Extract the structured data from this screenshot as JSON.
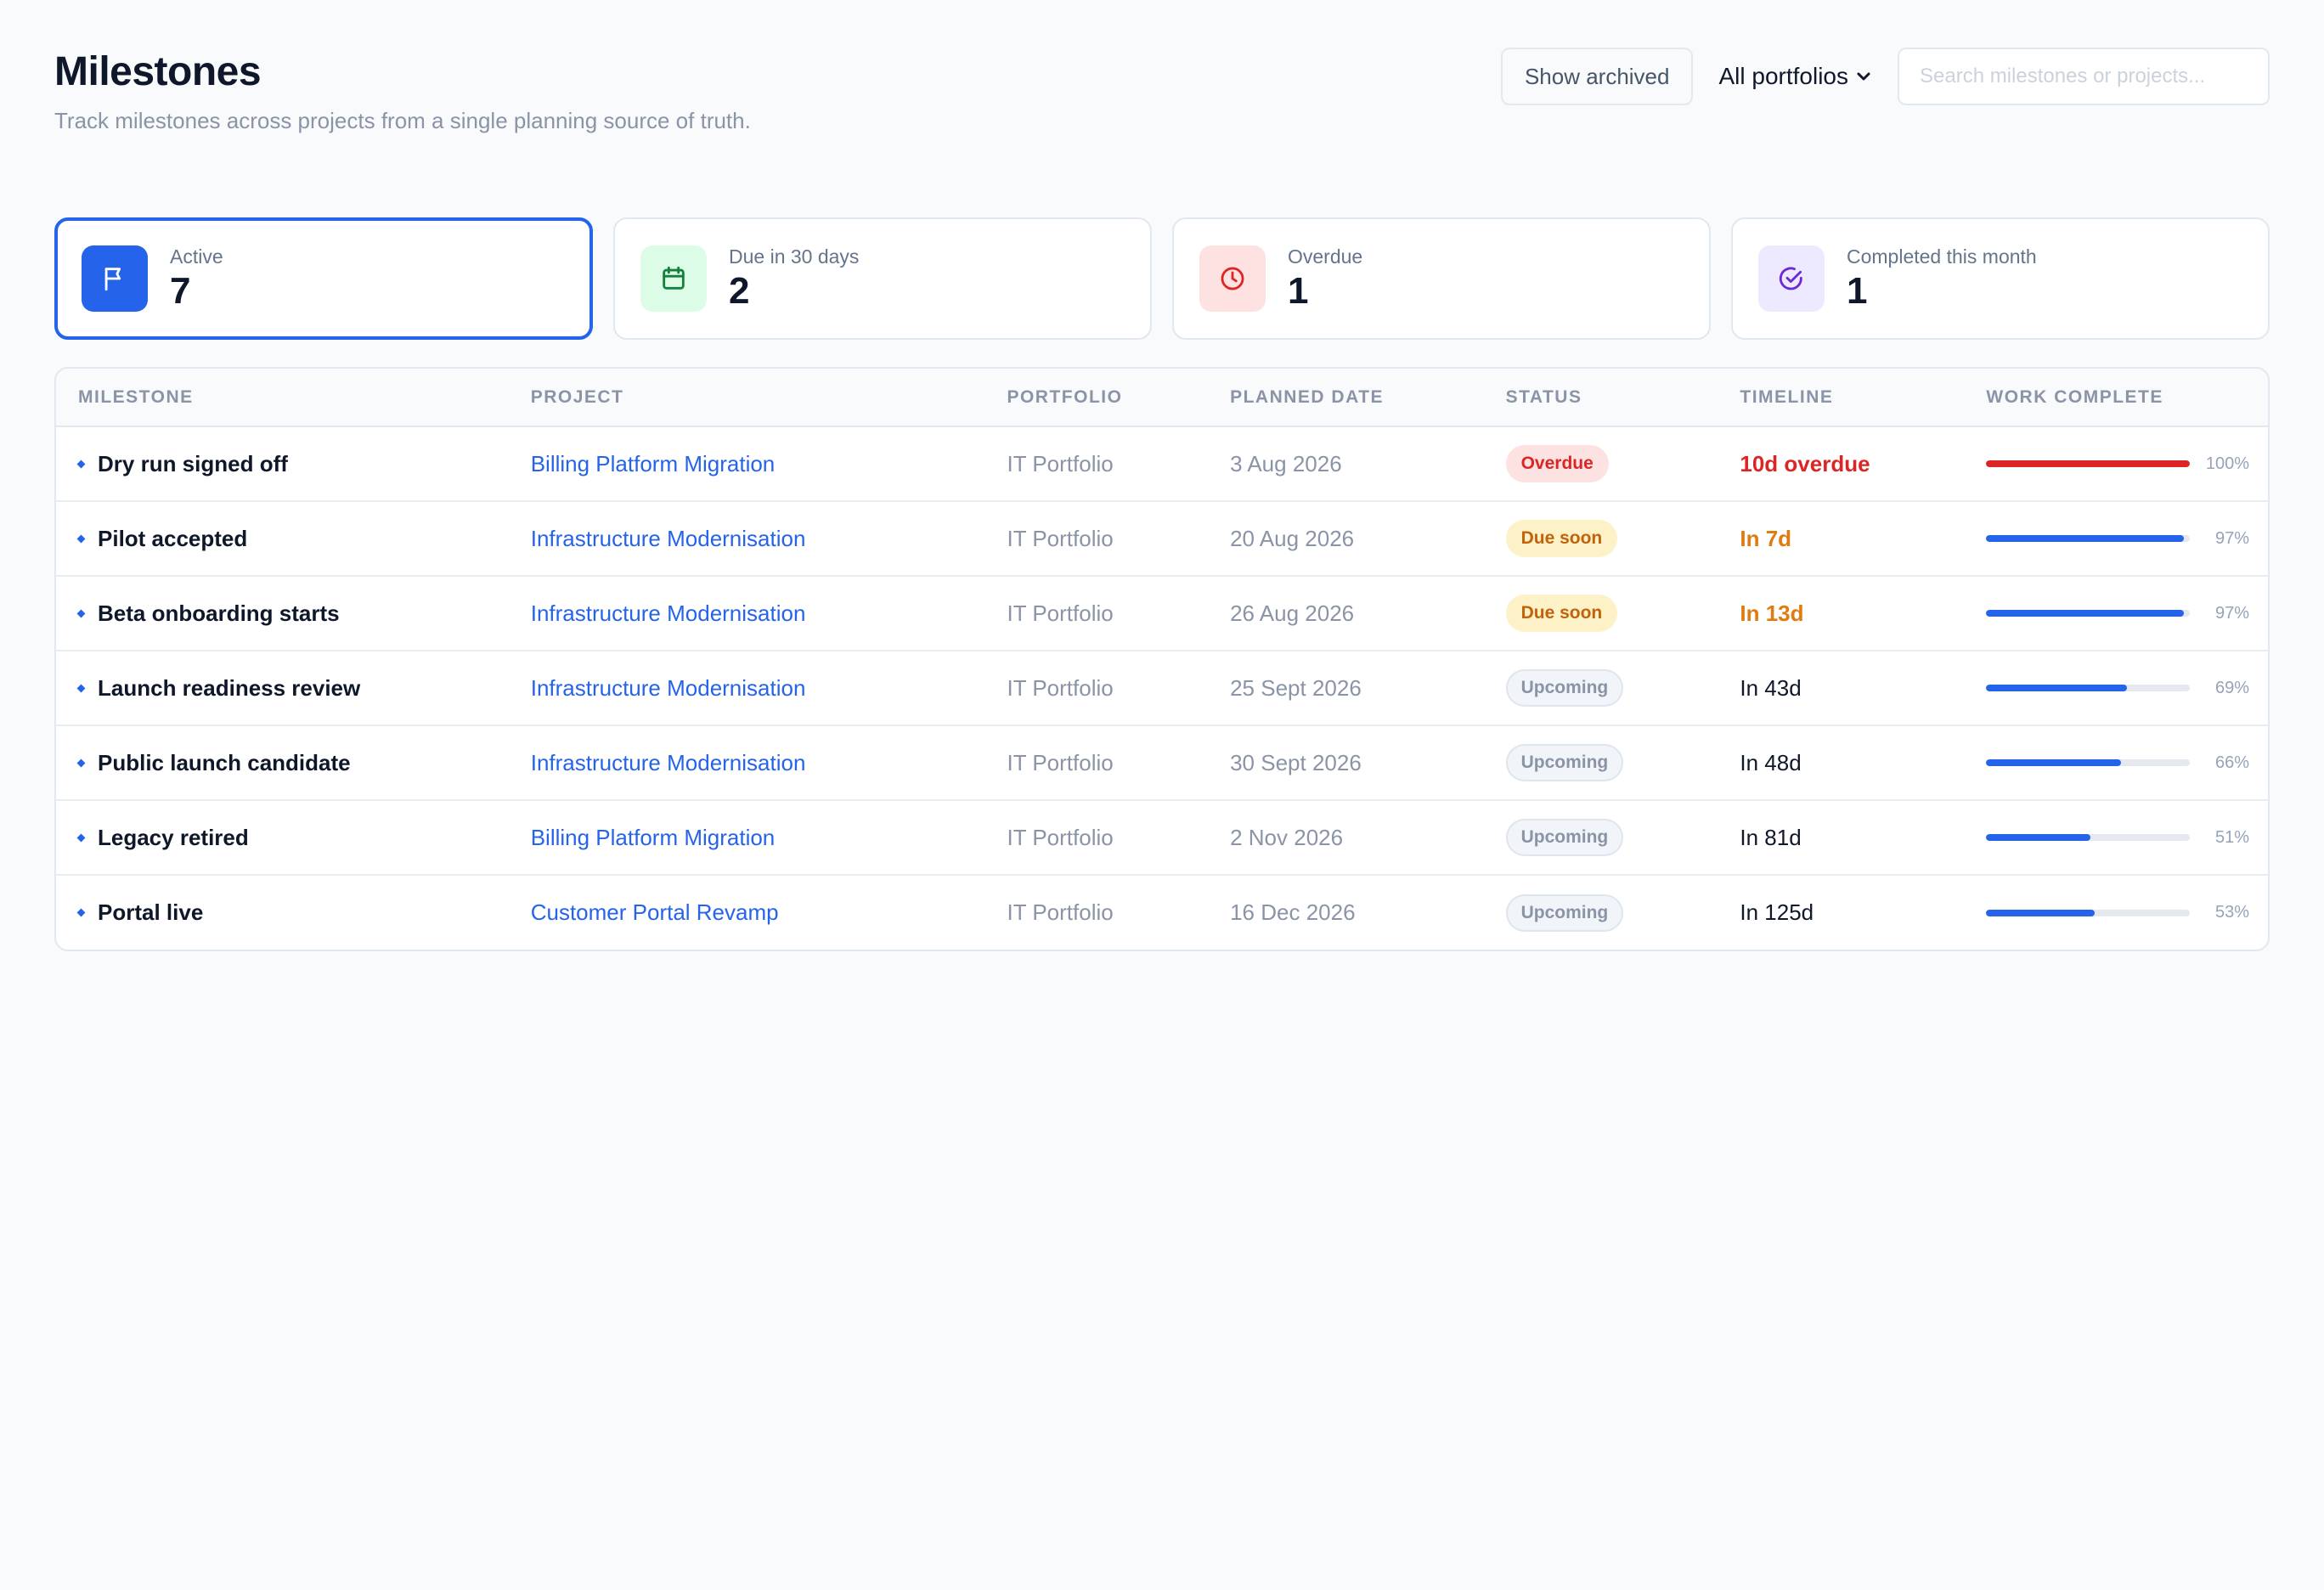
{
  "header": {
    "title": "Milestones",
    "subtitle": "Track milestones across projects from a single planning source of truth."
  },
  "controls": {
    "show_archived_label": "Show archived",
    "portfolio_select_value": "All portfolios",
    "search_placeholder": "Search milestones or projects..."
  },
  "cards": [
    {
      "label": "Active",
      "value": "7",
      "icon": "flag-icon",
      "icon_bg": "#2563eb",
      "icon_color": "#ffffff",
      "selected": true
    },
    {
      "label": "Due in 30 days",
      "value": "2",
      "icon": "calendar-icon",
      "icon_bg": "#dcfce7",
      "icon_color": "#15803d",
      "selected": false
    },
    {
      "label": "Overdue",
      "value": "1",
      "icon": "clock-icon",
      "icon_bg": "#fee2e2",
      "icon_color": "#dc2626",
      "selected": false
    },
    {
      "label": "Completed this month",
      "value": "1",
      "icon": "check-circle-icon",
      "icon_bg": "#ede9fe",
      "icon_color": "#6d28d9",
      "selected": false
    }
  ],
  "table": {
    "columns": [
      "MILESTONE",
      "PROJECT",
      "PORTFOLIO",
      "PLANNED DATE",
      "STATUS",
      "TIMELINE",
      "WORK COMPLETE"
    ],
    "rows": [
      {
        "milestone": "Dry run signed off",
        "project": "Billing Platform Migration",
        "portfolio": "IT Portfolio",
        "date": "3 Aug 2026",
        "status": "Overdue",
        "status_kind": "overdue",
        "timeline": "10d overdue",
        "timeline_kind": "overdue",
        "progress": 1.0,
        "progress_label": "100%"
      },
      {
        "milestone": "Pilot accepted",
        "project": "Infrastructure Modernisation",
        "portfolio": "IT Portfolio",
        "date": "20 Aug 2026",
        "status": "Due soon",
        "status_kind": "soon",
        "timeline": "In 7d",
        "timeline_kind": "soon",
        "progress": 0.97,
        "progress_label": "97%"
      },
      {
        "milestone": "Beta onboarding starts",
        "project": "Infrastructure Modernisation",
        "portfolio": "IT Portfolio",
        "date": "26 Aug 2026",
        "status": "Due soon",
        "status_kind": "soon",
        "timeline": "In 13d",
        "timeline_kind": "soon",
        "progress": 0.97,
        "progress_label": "97%"
      },
      {
        "milestone": "Launch readiness review",
        "project": "Infrastructure Modernisation",
        "portfolio": "IT Portfolio",
        "date": "25 Sept 2026",
        "status": "Upcoming",
        "status_kind": "upcoming",
        "timeline": "In 43d",
        "timeline_kind": "normal",
        "progress": 0.69,
        "progress_label": "69%"
      },
      {
        "milestone": "Public launch candidate",
        "project": "Infrastructure Modernisation",
        "portfolio": "IT Portfolio",
        "date": "30 Sept 2026",
        "status": "Upcoming",
        "status_kind": "upcoming",
        "timeline": "In 48d",
        "timeline_kind": "normal",
        "progress": 0.66,
        "progress_label": "66%"
      },
      {
        "milestone": "Legacy retired",
        "project": "Billing Platform Migration",
        "portfolio": "IT Portfolio",
        "date": "2 Nov 2026",
        "status": "Upcoming",
        "status_kind": "upcoming",
        "timeline": "In 81d",
        "timeline_kind": "normal",
        "progress": 0.51,
        "progress_label": "51%"
      },
      {
        "milestone": "Portal live",
        "project": "Customer Portal Revamp",
        "portfolio": "IT Portfolio",
        "date": "16 Dec 2026",
        "status": "Upcoming",
        "status_kind": "upcoming",
        "timeline": "In 125d",
        "timeline_kind": "normal",
        "progress": 0.53,
        "progress_label": "53%"
      }
    ]
  },
  "colors": {
    "accent": "#2563eb",
    "overdue": "#dc2626",
    "due_soon": "#e07b10"
  }
}
